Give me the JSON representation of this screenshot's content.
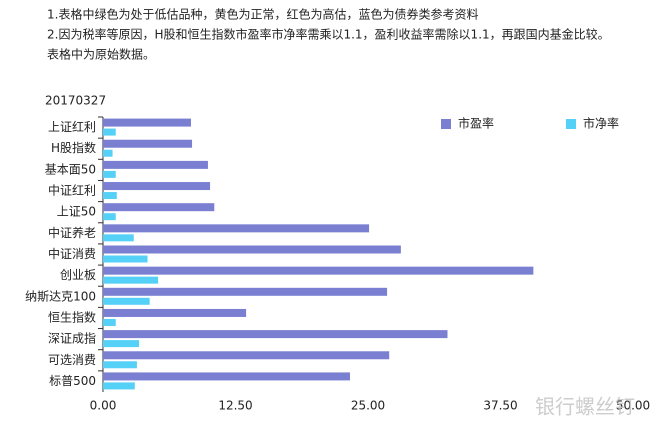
{
  "notes": [
    "1.表格中绿色为处于低估品种，黄色为正常，红色为高估，蓝色为债券类参考资料",
    "2.因为税率等原因，H股和恒生指数市盈率市净率需乘以1.1，盈利收益率需除以1.1，再跟国内基金比较。",
    "表格中为原始数据。"
  ],
  "watermark": "银行螺丝钉",
  "chart_data": {
    "type": "bar",
    "orientation": "horizontal",
    "subtitle": "20170327",
    "categories": [
      "上证红利",
      "H股指数",
      "基本面50",
      "中证红利",
      "上证50",
      "中证养老",
      "中证消费",
      "创业板",
      "纳斯达克100",
      "恒生指数",
      "深证成指",
      "可选消费",
      "标普500"
    ],
    "series": [
      {
        "name": "市盈率",
        "color": "#7b7fd2",
        "values": [
          8.3,
          8.4,
          9.9,
          10.1,
          10.5,
          25.1,
          28.1,
          40.6,
          26.8,
          13.5,
          32.5,
          27.0,
          23.3
        ]
      },
      {
        "name": "市净率",
        "color": "#55d0f6",
        "values": [
          1.2,
          0.9,
          1.2,
          1.3,
          1.2,
          2.9,
          4.2,
          5.2,
          4.4,
          1.2,
          3.4,
          3.2,
          3.0
        ]
      }
    ],
    "xlim": [
      0,
      50
    ],
    "xticks": [
      {
        "value": 0,
        "label": "0.00"
      },
      {
        "value": 12.5,
        "label": "12.50"
      },
      {
        "value": 25,
        "label": "25.00"
      },
      {
        "value": 37.5,
        "label": "37.50"
      },
      {
        "value": 50,
        "label": "50.00"
      }
    ],
    "legend": "top-right",
    "grid": false
  }
}
